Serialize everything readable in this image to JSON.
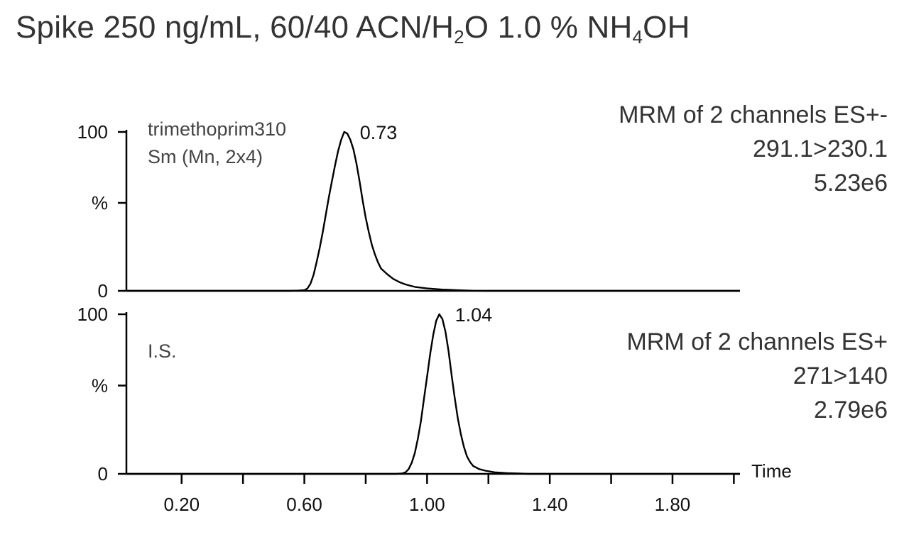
{
  "title": {
    "before_sub1": "Spike 250 ng/mL, 60/40 ACN/H",
    "sub1": "2",
    "between": "O 1.0 % NH",
    "sub2": "4",
    "after_sub2": "OH"
  },
  "chart_data": {
    "type": "line",
    "x_axis": {
      "label": "Time",
      "range": [
        0.02,
        2.02
      ],
      "ticks": [
        "0.20",
        "0.60",
        "1.00",
        "1.40",
        "1.80"
      ],
      "minor_ticks": [
        0.4,
        0.8,
        1.2,
        1.6,
        2.0
      ]
    },
    "panels": [
      {
        "trace_label_lines": [
          "trimethoprim310",
          "Sm (Mn, 2x4)"
        ],
        "info_lines": [
          "MRM of 2 channels ES+-",
          "291.1>230.1",
          "5.23e6"
        ],
        "y_ticks": [
          "100",
          "%",
          "0"
        ],
        "ylim": [
          0,
          100
        ],
        "peak_label": "0.73",
        "peak_apex": {
          "x": 0.73,
          "y": 100
        },
        "x_range": [
          0.02,
          2.02
        ],
        "series": [
          {
            "points": [
              [
                0.02,
                0
              ],
              [
                0.55,
                0
              ],
              [
                0.58,
                0.2
              ],
              [
                0.6,
                0.4
              ],
              [
                0.61,
                1.5
              ],
              [
                0.62,
                4.5
              ],
              [
                0.63,
                10
              ],
              [
                0.64,
                18
              ],
              [
                0.65,
                27
              ],
              [
                0.66,
                37
              ],
              [
                0.67,
                48
              ],
              [
                0.68,
                59
              ],
              [
                0.69,
                69
              ],
              [
                0.7,
                79
              ],
              [
                0.71,
                88
              ],
              [
                0.72,
                95
              ],
              [
                0.73,
                100
              ],
              [
                0.74,
                99
              ],
              [
                0.75,
                95
              ],
              [
                0.76,
                89
              ],
              [
                0.77,
                80
              ],
              [
                0.78,
                69
              ],
              [
                0.79,
                57
              ],
              [
                0.8,
                46
              ],
              [
                0.81,
                37
              ],
              [
                0.82,
                29
              ],
              [
                0.83,
                23
              ],
              [
                0.84,
                18
              ],
              [
                0.85,
                14
              ],
              [
                0.87,
                10.5
              ],
              [
                0.89,
                7.5
              ],
              [
                0.91,
                5.5
              ],
              [
                0.93,
                4
              ],
              [
                0.96,
                2.5
              ],
              [
                1.0,
                1.5
              ],
              [
                1.05,
                0.8
              ],
              [
                1.1,
                0.4
              ],
              [
                1.15,
                0.1
              ],
              [
                1.2,
                0
              ],
              [
                2.02,
                0
              ]
            ]
          }
        ]
      },
      {
        "trace_label_lines": [
          "I.S."
        ],
        "info_lines": [
          "MRM of 2 channels ES+",
          "271>140",
          "2.79e6"
        ],
        "y_ticks": [
          "100",
          "%",
          "0"
        ],
        "ylim": [
          0,
          100
        ],
        "peak_label": "1.04",
        "peak_apex": {
          "x": 1.04,
          "y": 100
        },
        "x_range": [
          0.02,
          2.02
        ],
        "series": [
          {
            "points": [
              [
                0.02,
                0
              ],
              [
                0.9,
                0
              ],
              [
                0.92,
                0.3
              ],
              [
                0.93,
                1
              ],
              [
                0.94,
                3
              ],
              [
                0.95,
                7
              ],
              [
                0.96,
                13
              ],
              [
                0.97,
                22
              ],
              [
                0.98,
                33
              ],
              [
                0.99,
                47
              ],
              [
                1.0,
                61
              ],
              [
                1.01,
                75
              ],
              [
                1.02,
                87
              ],
              [
                1.03,
                96
              ],
              [
                1.04,
                100
              ],
              [
                1.05,
                97
              ],
              [
                1.06,
                89
              ],
              [
                1.07,
                77
              ],
              [
                1.08,
                62
              ],
              [
                1.09,
                48
              ],
              [
                1.1,
                35
              ],
              [
                1.11,
                25
              ],
              [
                1.12,
                17
              ],
              [
                1.13,
                11
              ],
              [
                1.14,
                7.5
              ],
              [
                1.15,
                5
              ],
              [
                1.17,
                3
              ],
              [
                1.19,
                2
              ],
              [
                1.22,
                1
              ],
              [
                1.26,
                0.5
              ],
              [
                1.3,
                0.2
              ],
              [
                1.33,
                0
              ],
              [
                2.02,
                0
              ]
            ]
          }
        ]
      }
    ]
  }
}
